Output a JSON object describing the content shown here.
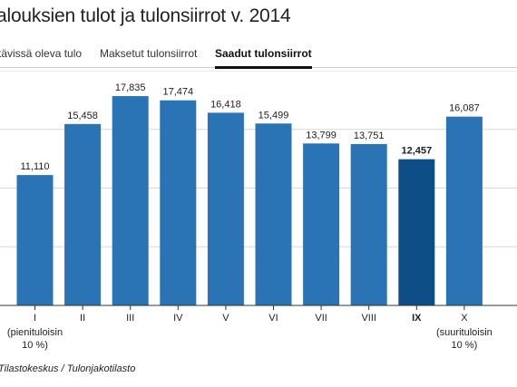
{
  "title": "alouksien tulot ja tulonsiirrot v. 2014",
  "tabs": [
    {
      "label": "tävissä oleva tulo",
      "active": false
    },
    {
      "label": "Maksetut tulonsiirrot",
      "active": false
    },
    {
      "label": "Saadut tulonsiirrot",
      "active": true
    }
  ],
  "source": "Tilastokeskus / Tulonjakotilasto",
  "colors": {
    "bar": "#2a73b5",
    "highlight": "#0d4e86",
    "gridline": "#d8d8d8",
    "axis": "#333333"
  },
  "chart_data": {
    "type": "bar",
    "categories": [
      "I",
      "II",
      "III",
      "IV",
      "V",
      "VI",
      "VII",
      "VIII",
      "IX",
      "X"
    ],
    "category_sublabels": [
      [
        "(pienituloisin",
        "10 %)"
      ],
      [],
      [],
      [],
      [],
      [],
      [],
      [],
      [],
      [
        "(suurituloisin",
        "10 %)"
      ]
    ],
    "values": [
      11110,
      15458,
      17835,
      17474,
      16418,
      15499,
      13799,
      13751,
      12457,
      16087
    ],
    "value_labels": [
      "11,110",
      "15,458",
      "17,835",
      "17,474",
      "16,418",
      "15,499",
      "13,799",
      "13,751",
      "12,457",
      "16,087"
    ],
    "highlight_index": 8,
    "ylim": [
      0,
      20000
    ],
    "grid": true,
    "title": "alouksien tulot ja tulonsiirrot v. 2014"
  }
}
